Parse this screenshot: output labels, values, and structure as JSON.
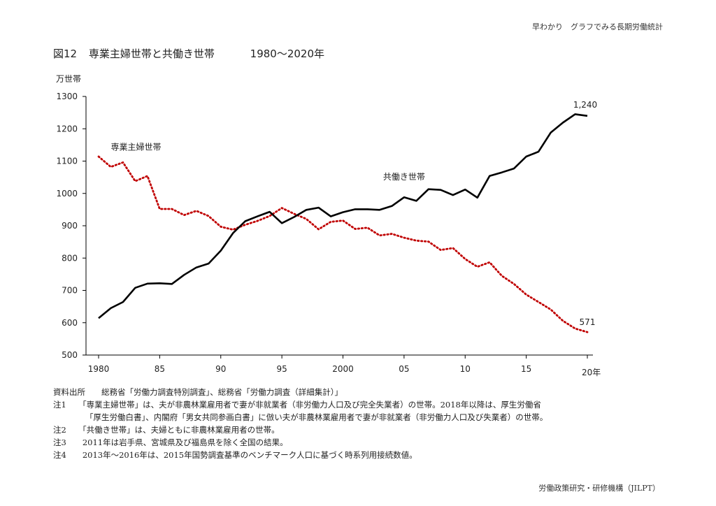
{
  "header_right": "早わかり　グラフでみる長期労働統計",
  "figure_number": "図12",
  "figure_title": "専業主婦世帯と共働き世帯",
  "figure_range": "1980～2020年",
  "chart_data": {
    "type": "line",
    "ylabel": "万世帯",
    "ylim": [
      500,
      1300
    ],
    "yticks": [
      500,
      600,
      700,
      800,
      900,
      1000,
      1100,
      1200,
      1300
    ],
    "xlim": [
      1980,
      2020
    ],
    "xtick_values": [
      1980,
      1985,
      1990,
      1995,
      2000,
      2005,
      2010,
      2015,
      2020
    ],
    "xtick_labels": [
      "1980",
      "85",
      "90",
      "95",
      "2000",
      "05",
      "10",
      "15",
      "20年"
    ],
    "grid": false,
    "x": [
      1980,
      1981,
      1982,
      1983,
      1984,
      1985,
      1986,
      1987,
      1988,
      1989,
      1990,
      1991,
      1992,
      1993,
      1994,
      1995,
      1996,
      1997,
      1998,
      1999,
      2000,
      2001,
      2002,
      2003,
      2004,
      2005,
      2006,
      2007,
      2008,
      2009,
      2010,
      2011,
      2012,
      2013,
      2014,
      2015,
      2016,
      2017,
      2018,
      2019,
      2020
    ],
    "series": [
      {
        "name": "専業主婦世帯",
        "color": "#c00000",
        "style": "dotted",
        "values": [
          1114,
          1082,
          1096,
          1038,
          1054,
          952,
          952,
          933,
          946,
          930,
          897,
          888,
          903,
          915,
          930,
          955,
          937,
          921,
          889,
          912,
          916,
          890,
          894,
          870,
          875,
          863,
          854,
          851,
          825,
          831,
          797,
          773,
          787,
          745,
          720,
          687,
          664,
          641,
          606,
          582,
          571
        ]
      },
      {
        "name": "共働き世帯",
        "color": "#000000",
        "style": "solid",
        "values": [
          614,
          645,
          664,
          708,
          721,
          722,
          720,
          748,
          771,
          783,
          823,
          877,
          914,
          929,
          943,
          908,
          927,
          949,
          956,
          929,
          942,
          951,
          951,
          949,
          961,
          988,
          977,
          1013,
          1011,
          995,
          1012,
          987,
          1054,
          1065,
          1077,
          1114,
          1129,
          1188,
          1219,
          1245,
          1240
        ]
      }
    ],
    "annotations": [
      {
        "text": "専業主婦世帯",
        "series": "専業主婦世帯"
      },
      {
        "text": "共働き世帯",
        "series": "共働き世帯"
      },
      {
        "text": "1,240",
        "x": 2020,
        "y": 1240
      },
      {
        "text": "571",
        "x": 2020,
        "y": 571
      }
    ]
  },
  "notes": [
    {
      "label": "資料出所",
      "text": "総務省「労働力調査特別調査」、総務省「労働力調査（詳細集計）」"
    },
    {
      "label": "注1",
      "text": "「専業主婦世帯」は、夫が非農林業雇用者で妻が非就業者（非労働力人口及び完全失業者）の世帯。2018年以降は、厚生労働省"
    },
    {
      "label": "",
      "text": "「厚生労働白書」、内閣府「男女共同参画白書」に倣い夫が非農林業雇用者で妻が非就業者（非労働力人口及び失業者）の世帯。"
    },
    {
      "label": "注2",
      "text": "「共働き世帯」は、夫婦ともに非農林業雇用者の世帯。"
    },
    {
      "label": "注3",
      "text": "2011年は岩手県、宮城県及び福島県を除く全国の結果。"
    },
    {
      "label": "注4",
      "text": "2013年～2016年は、2015年国勢調査基準のベンチマーク人口に基づく時系列用接続数値。"
    }
  ],
  "footer": "労働政策研究・研修機構（JILPT）"
}
